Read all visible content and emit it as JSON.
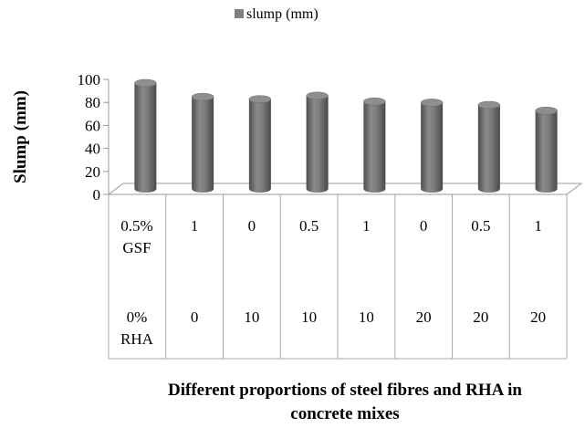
{
  "chart_data": {
    "type": "bar",
    "title": "",
    "legend": {
      "position": "top",
      "entries": [
        "slump (mm)"
      ]
    },
    "series": [
      {
        "name": "slump (mm)",
        "values": [
          100,
          88,
          86,
          89,
          84,
          83,
          81,
          76
        ],
        "color": "#7a7a7a"
      }
    ],
    "table_rows": [
      {
        "label": "0.5% GSF",
        "label_lines": [
          "0.5%",
          "GSF"
        ],
        "values": [
          "",
          "1",
          "0",
          "0.5",
          "1",
          "0",
          "0.5",
          "1"
        ]
      },
      {
        "label": "0% RHA",
        "label_lines": [
          "0%",
          "RHA"
        ],
        "values": [
          "",
          "0",
          "10",
          "10",
          "10",
          "20",
          "20",
          "20"
        ]
      }
    ],
    "ylabel": "Slump (mm)",
    "xlabel_lines": [
      "Different proportions of steel fibres and RHA  in",
      "concrete mixes"
    ],
    "ylim": [
      0,
      100
    ],
    "yticks": [
      0,
      20,
      40,
      60,
      80,
      100
    ],
    "grid": false
  }
}
